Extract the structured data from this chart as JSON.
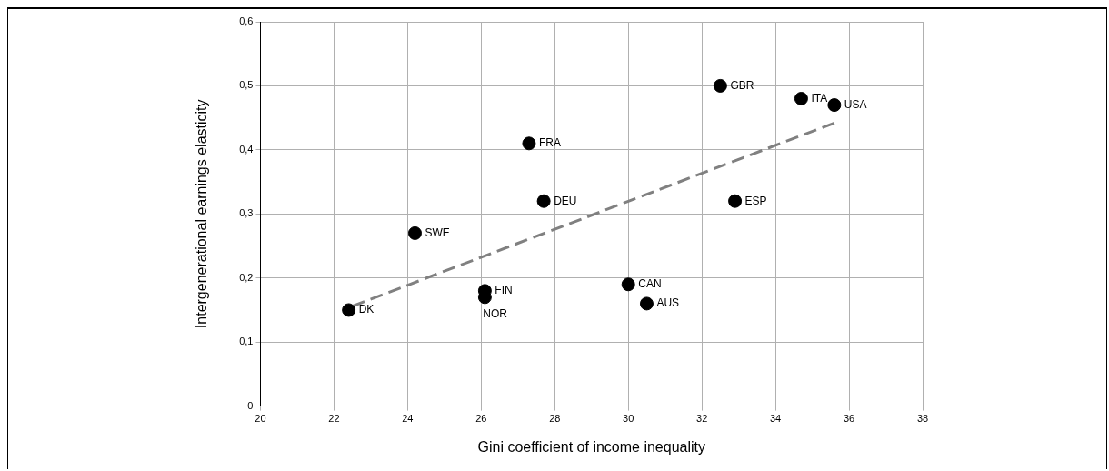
{
  "chart_data": {
    "type": "scatter",
    "xlabel": "Gini coefficient of income inequality",
    "ylabel": "Intergenerational earnings elasticity",
    "series": [
      {
        "type": "scatter",
        "color": "#000000",
        "marker": "circle",
        "x": [
          22.4,
          24.2,
          26.1,
          26.1,
          27.3,
          27.7,
          30.0,
          30.5,
          32.5,
          32.9,
          34.7,
          35.6
        ],
        "values": [
          0.15,
          0.27,
          0.18,
          0.17,
          0.41,
          0.32,
          0.19,
          0.16,
          0.5,
          0.32,
          0.48,
          0.47
        ]
      },
      {
        "type": "line",
        "color": "#808080",
        "line_style": "dashed",
        "marker": "none",
        "x": [
          22.5,
          35.6
        ],
        "values": [
          0.156,
          0.442
        ]
      }
    ],
    "annotations": [
      {
        "text": "DK",
        "x": 22.4,
        "y": 0.15
      },
      {
        "text": "SWE",
        "x": 24.2,
        "y": 0.27
      },
      {
        "text": "FIN",
        "x": 26.1,
        "y": 0.18
      },
      {
        "text": "NOR",
        "x": 26.1,
        "y": 0.17
      },
      {
        "text": "FRA",
        "x": 27.3,
        "y": 0.41
      },
      {
        "text": "DEU",
        "x": 27.7,
        "y": 0.32
      },
      {
        "text": "CAN",
        "x": 30.0,
        "y": 0.19
      },
      {
        "text": "AUS",
        "x": 30.5,
        "y": 0.16
      },
      {
        "text": "GBR",
        "x": 32.5,
        "y": 0.5
      },
      {
        "text": "ESP",
        "x": 32.9,
        "y": 0.32
      },
      {
        "text": "ITA",
        "x": 34.7,
        "y": 0.48
      },
      {
        "text": "USA",
        "x": 35.6,
        "y": 0.47
      }
    ],
    "xlim": [
      20,
      38
    ],
    "xticks": [
      20,
      22,
      24,
      26,
      28,
      30,
      32,
      34,
      36,
      38
    ],
    "ylim": [
      0,
      0.6
    ],
    "yticks": [
      0,
      {
        "value": 0.1,
        "label": "0,1"
      },
      {
        "value": 0.2,
        "label": "0,2"
      },
      {
        "value": 0.3,
        "label": "0,3"
      },
      {
        "value": 0.4,
        "label": "0,4"
      },
      {
        "value": 0.5,
        "label": "0,5"
      },
      {
        "value": 0.6,
        "label": "0,6"
      }
    ],
    "grid": true,
    "legend": false
  }
}
